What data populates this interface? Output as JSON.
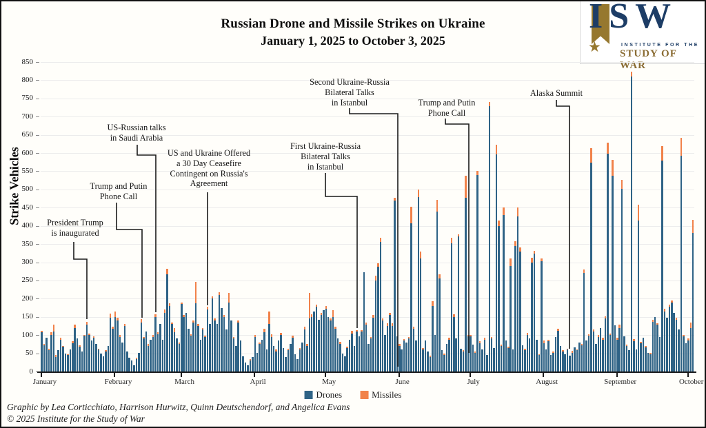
{
  "header": {
    "title": "Russian Drone and Missile Strikes on Ukraine",
    "subtitle": "January 1, 2025 to October 3, 2025"
  },
  "logo": {
    "wordmark": "ISW",
    "star": "★",
    "line1": "INSTITUTE FOR THE",
    "line2": "STUDY OF WAR"
  },
  "legend": [
    {
      "label": "Drones",
      "color": "#2f6386"
    },
    {
      "label": "Missiles",
      "color": "#f1824a"
    }
  ],
  "footer": {
    "credit": "Graphic by Lea Corticchiato, Harrison Hurwitz, Quinn Deutschendorf, and Angelica Evans",
    "copyright": "© 2025 Institute for the Study of War"
  },
  "chart_data": {
    "type": "bar",
    "stacked": true,
    "title": "Russian Drone and Missile Strikes on Ukraine",
    "subtitle": "January 1, 2025 to October 3, 2025",
    "xlabel": "",
    "ylabel": "Strike Vehicles",
    "ylim": [
      0,
      850
    ],
    "ytick_step": 50,
    "grid": true,
    "legend_position": "bottom",
    "colors": {
      "drones": "#2f6386",
      "missiles": "#f1824a"
    },
    "months": [
      {
        "label": "January",
        "days": 31
      },
      {
        "label": "February",
        "days": 28
      },
      {
        "label": "March",
        "days": 31
      },
      {
        "label": "April",
        "days": 30
      },
      {
        "label": "May",
        "days": 31
      },
      {
        "label": "June",
        "days": 30
      },
      {
        "label": "July",
        "days": 31
      },
      {
        "label": "August",
        "days": 31
      },
      {
        "label": "September",
        "days": 30
      },
      {
        "label": "October",
        "days": 3
      }
    ],
    "series": [
      {
        "name": "Drones",
        "color": "#2f6386",
        "values": [
          108,
          72,
          93,
          58,
          100,
          110,
          40,
          58,
          88,
          68,
          50,
          45,
          60,
          78,
          120,
          90,
          68,
          55,
          98,
          128,
          100,
          85,
          92,
          75,
          60,
          50,
          42,
          55,
          70,
          148,
          118,
          150,
          140,
          95,
          80,
          125,
          55,
          38,
          30,
          18,
          35,
          52,
          135,
          90,
          110,
          70,
          88,
          95,
          150,
          103,
          130,
          88,
          160,
          267,
          180,
          130,
          108,
          90,
          75,
          185,
          150,
          160,
          118,
          98,
          135,
          187,
          125,
          88,
          115,
          95,
          170,
          130,
          200,
          140,
          130,
          210,
          175,
          150,
          115,
          190,
          140,
          90,
          70,
          135,
          85,
          42,
          25,
          18,
          30,
          40,
          95,
          52,
          75,
          88,
          108,
          60,
          130,
          95,
          70,
          55,
          85,
          100,
          65,
          40,
          58,
          75,
          92,
          48,
          35,
          60,
          80,
          115,
          70,
          145,
          150,
          165,
          178,
          142,
          155,
          168,
          172,
          150,
          140,
          150,
          118,
          90,
          76,
          50,
          42,
          65,
          88,
          105,
          70,
          110,
          96,
          110,
          273,
          128,
          75,
          90,
          148,
          250,
          288,
          355,
          140,
          100,
          125,
          155,
          125,
          470,
          96,
          70,
          60,
          85,
          80,
          90,
          407,
          118,
          85,
          479,
          310,
          60,
          85,
          55,
          40,
          180,
          100,
          440,
          255,
          58,
          45,
          75,
          88,
          352,
          150,
          90,
          371,
          62,
          55,
          477,
          96,
          96,
          74,
          52,
          539,
          78,
          60,
          88,
          45,
          728,
          90,
          65,
          597,
          400,
          70,
          430,
          85,
          64,
          290,
          60,
          344,
          426,
          330,
          72,
          58,
          100,
          90,
          300,
          324,
          88,
          45,
          303,
          78,
          60,
          83,
          46,
          52,
          94,
          112,
          70,
          55,
          48,
          60,
          44,
          52,
          66,
          58,
          80,
          72,
          270,
          85,
          98,
          574,
          110,
          75,
          95,
          120,
          88,
          145,
          598,
          100,
          537,
          126,
          88,
          120,
          502,
          96,
          70,
          58,
          810,
          84,
          60,
          415,
          78,
          92,
          66,
          52,
          48,
          136,
          150,
          128,
          95,
          579,
          165,
          148,
          178,
          190,
          160,
          142,
          115,
          593,
          96,
          78,
          86,
          120,
          381
        ]
      },
      {
        "name": "Missiles",
        "color": "#f1824a",
        "values": [
          4,
          3,
          0,
          4,
          8,
          18,
          5,
          0,
          5,
          3,
          0,
          3,
          0,
          6,
          8,
          0,
          4,
          0,
          3,
          8,
          5,
          0,
          4,
          0,
          3,
          0,
          0,
          4,
          0,
          12,
          5,
          15,
          8,
          5,
          0,
          6,
          0,
          0,
          0,
          0,
          3,
          0,
          8,
          5,
          0,
          6,
          0,
          5,
          8,
          5,
          0,
          0,
          10,
          15,
          8,
          5,
          12,
          0,
          5,
          5,
          6,
          0,
          0,
          4,
          5,
          59,
          6,
          0,
          5,
          4,
          8,
          0,
          6,
          5,
          0,
          8,
          0,
          5,
          0,
          25,
          0,
          4,
          0,
          5,
          0,
          0,
          0,
          0,
          4,
          0,
          6,
          0,
          5,
          0,
          10,
          0,
          35,
          8,
          0,
          5,
          0,
          6,
          0,
          0,
          5,
          0,
          6,
          0,
          0,
          5,
          0,
          8,
          5,
          70,
          8,
          0,
          6,
          0,
          5,
          0,
          8,
          0,
          5,
          18,
          6,
          0,
          5,
          0,
          0,
          4,
          0,
          6,
          0,
          4,
          0,
          4,
          0,
          6,
          0,
          5,
          8,
          14,
          10,
          12,
          6,
          0,
          8,
          5,
          8,
          8,
          0,
          5,
          0,
          4,
          0,
          5,
          45,
          5,
          0,
          20,
          20,
          4,
          0,
          0,
          3,
          13,
          0,
          32,
          12,
          0,
          4,
          0,
          5,
          16,
          8,
          0,
          5,
          0,
          4,
          60,
          5,
          4,
          0,
          3,
          11,
          5,
          0,
          4,
          0,
          13,
          5,
          0,
          26,
          15,
          4,
          20,
          0,
          4,
          20,
          0,
          14,
          24,
          10,
          0,
          4,
          6,
          0,
          12,
          8,
          0,
          3,
          8,
          8,
          0,
          5,
          0,
          3,
          0,
          5,
          0,
          4,
          0,
          3,
          0,
          4,
          0,
          3,
          0,
          4,
          10,
          0,
          5,
          40,
          6,
          0,
          5,
          0,
          4,
          6,
          31,
          5,
          45,
          0,
          5,
          8,
          24,
          0,
          4,
          0,
          13,
          5,
          0,
          43,
          4,
          0,
          5,
          0,
          3,
          6,
          0,
          5,
          0,
          40,
          8,
          0,
          6,
          5,
          0,
          6,
          0,
          48,
          5,
          0,
          4,
          15,
          35
        ]
      }
    ],
    "annotations": [
      {
        "text": "President Trump\nis inaugurated",
        "text_x": 107,
        "text_y": 314,
        "pointer": [
          [
            105,
            349
          ],
          [
            105,
            374
          ],
          [
            124,
            374
          ],
          [
            124,
            461
          ]
        ]
      },
      {
        "text": "Trump and Putin\nPhone Call",
        "text_x": 170,
        "text_y": 261,
        "pointer": [
          [
            167,
            292
          ],
          [
            167,
            331
          ],
          [
            204,
            331
          ],
          [
            204,
            459
          ]
        ]
      },
      {
        "text": "US-Russian talks\nin Saudi Arabia",
        "text_x": 196,
        "text_y": 176,
        "pointer": [
          [
            197,
            208
          ],
          [
            197,
            223
          ],
          [
            224,
            223
          ],
          [
            224,
            451
          ]
        ]
      },
      {
        "text": "US and Ukraine Offered\na 30 Day Ceasefire\nContingent on Russia's\nAgreement",
        "text_x": 301,
        "text_y": 213,
        "pointer": [
          [
            299,
            277
          ],
          [
            299,
            441
          ]
        ]
      },
      {
        "text": "First Ukraine-Russia\nBilateral Talks\nin Istanbul",
        "text_x": 470,
        "text_y": 203,
        "pointer": [
          [
            470,
            249
          ],
          [
            470,
            283
          ],
          [
            516,
            283
          ],
          [
            516,
            474
          ]
        ]
      },
      {
        "text": "Second Ukraine-Russia\nBilateral Talks\nin Istanbul",
        "text_x": 505,
        "text_y": 110,
        "pointer": [
          [
            505,
            155
          ],
          [
            505,
            163
          ],
          [
            575,
            163
          ],
          [
            575,
            530
          ]
        ]
      },
      {
        "text": "Trump and Putin\nPhone Call",
        "text_x": 646,
        "text_y": 140,
        "pointer": [
          [
            644,
            170
          ],
          [
            644,
            178
          ],
          [
            678,
            178
          ],
          [
            678,
            510
          ]
        ]
      },
      {
        "text": "Alaska Summit",
        "text_x": 805,
        "text_y": 126,
        "pointer": [
          [
            805,
            143
          ],
          [
            805,
            152
          ],
          [
            824,
            152
          ],
          [
            824,
            504
          ]
        ]
      }
    ]
  }
}
